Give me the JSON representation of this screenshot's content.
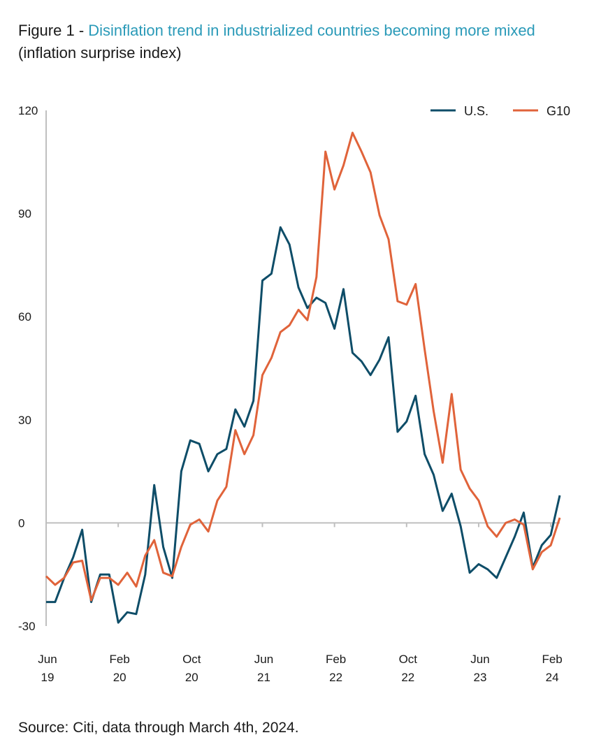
{
  "figure_label": "Figure 1 - ",
  "title": "Disinflation trend in industrialized countries becoming more mixed",
  "subtitle": "(inflation surprise index)",
  "source": "Source: Citi, data through March 4th, 2024.",
  "colors": {
    "us": "#0e4d68",
    "g10": "#e0633a",
    "axis": "#bfbfbf",
    "title_accent": "#2a9ab8"
  },
  "chart_data": {
    "type": "line",
    "title": "Disinflation trend in industrialized countries becoming more mixed",
    "subtitle": "(inflation surprise index)",
    "ylim": [
      -30,
      120
    ],
    "yticks": [
      -30,
      0,
      30,
      60,
      90,
      120
    ],
    "x_range": [
      0,
      57
    ],
    "x_ticks": [
      {
        "x": 0,
        "label": "Jun",
        "label2": "19"
      },
      {
        "x": 8,
        "label": "Feb",
        "label2": "20"
      },
      {
        "x": 16,
        "label": "Oct",
        "label2": "20"
      },
      {
        "x": 24,
        "label": "Jun",
        "label2": "21"
      },
      {
        "x": 32,
        "label": "Feb",
        "label2": "22"
      },
      {
        "x": 40,
        "label": "Oct",
        "label2": "22"
      },
      {
        "x": 48,
        "label": "Jun",
        "label2": "23"
      },
      {
        "x": 56,
        "label": "Feb",
        "label2": "24"
      }
    ],
    "grid": false,
    "legend_position": "top-right",
    "series": [
      {
        "name": "U.S.",
        "color": "#0e4d68",
        "values": [
          -23,
          -23,
          -16,
          -10,
          -2,
          -23,
          -15,
          -15,
          -29,
          -26,
          -26.5,
          -15,
          11,
          -7,
          -16,
          15,
          24,
          23,
          15,
          20,
          21.5,
          33,
          28,
          35.5,
          70.5,
          72.5,
          86,
          81,
          68.5,
          62.5,
          65.5,
          64,
          56.5,
          68,
          49.5,
          47,
          43,
          47.5,
          54,
          26.5,
          29.5,
          37,
          20,
          14,
          3.5,
          8.5,
          -1,
          -14.5,
          -12,
          -13.5,
          -16,
          -10,
          -4,
          3,
          -13,
          -6.5,
          -3.5,
          8
        ]
      },
      {
        "name": "G10",
        "color": "#e0633a",
        "values": [
          -15.5,
          -18,
          -16,
          -11.5,
          -11,
          -22.5,
          -16,
          -16,
          -18,
          -14.5,
          -18.5,
          -9.5,
          -5,
          -14.5,
          -15.5,
          -7,
          -0.5,
          1,
          -2.5,
          6.5,
          10.5,
          27,
          20,
          25.5,
          43,
          48,
          55.5,
          57.5,
          62,
          59,
          71.5,
          108,
          97,
          104,
          113.5,
          108,
          102,
          89.5,
          82.5,
          64.5,
          63.5,
          69.5,
          50.5,
          32.5,
          17.5,
          37.5,
          15.5,
          10,
          6.5,
          -1,
          -4,
          0,
          1,
          -0.5,
          -13.5,
          -8.5,
          -6.5,
          1.5
        ]
      }
    ]
  }
}
